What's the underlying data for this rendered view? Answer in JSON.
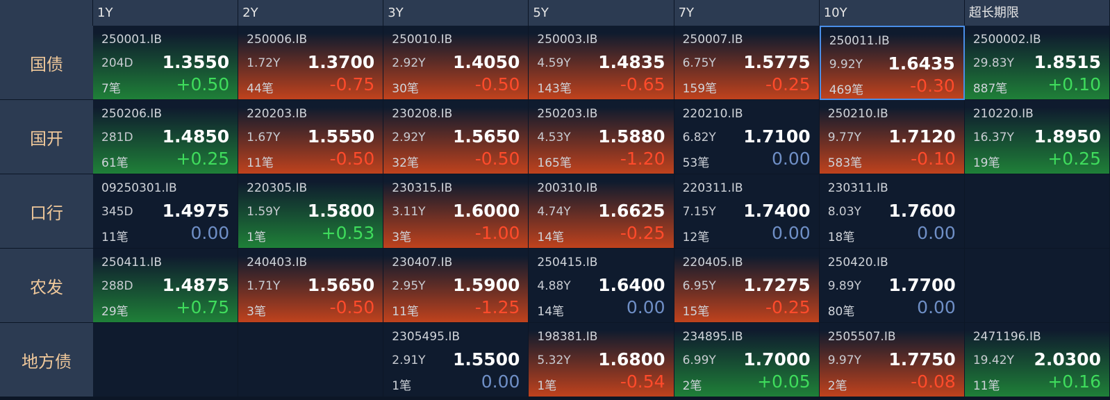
{
  "columns": [
    "1Y",
    "2Y",
    "3Y",
    "5Y",
    "7Y",
    "10Y",
    "超长期限"
  ],
  "rows": [
    {
      "label": "国债",
      "cells": [
        {
          "code": "250001.IB",
          "term": "204D",
          "price": "1.3550",
          "count": "7笔",
          "change": "+0.50"
        },
        {
          "code": "250006.IB",
          "term": "1.72Y",
          "price": "1.3700",
          "count": "44笔",
          "change": "-0.75"
        },
        {
          "code": "250010.IB",
          "term": "2.92Y",
          "price": "1.4050",
          "count": "30笔",
          "change": "-0.50"
        },
        {
          "code": "250003.IB",
          "term": "4.59Y",
          "price": "1.4835",
          "count": "143笔",
          "change": "-0.65"
        },
        {
          "code": "250007.IB",
          "term": "6.75Y",
          "price": "1.5775",
          "count": "159笔",
          "change": "-0.25"
        },
        {
          "code": "250011.IB",
          "term": "9.92Y",
          "price": "1.6435",
          "count": "469笔",
          "change": "-0.30"
        },
        {
          "code": "2500002.IB",
          "term": "29.83Y",
          "price": "1.8515",
          "count": "887笔",
          "change": "+0.10"
        }
      ]
    },
    {
      "label": "国开",
      "cells": [
        {
          "code": "250206.IB",
          "term": "281D",
          "price": "1.4850",
          "count": "61笔",
          "change": "+0.25"
        },
        {
          "code": "220203.IB",
          "term": "1.67Y",
          "price": "1.5550",
          "count": "11笔",
          "change": "-0.50"
        },
        {
          "code": "230208.IB",
          "term": "2.92Y",
          "price": "1.5650",
          "count": "32笔",
          "change": "-0.50"
        },
        {
          "code": "250203.IB",
          "term": "4.53Y",
          "price": "1.5880",
          "count": "165笔",
          "change": "-1.20"
        },
        {
          "code": "220210.IB",
          "term": "6.82Y",
          "price": "1.7100",
          "count": "53笔",
          "change": "0.00"
        },
        {
          "code": "250210.IB",
          "term": "9.77Y",
          "price": "1.7120",
          "count": "583笔",
          "change": "-0.10"
        },
        {
          "code": "210220.IB",
          "term": "16.37Y",
          "price": "1.8950",
          "count": "19笔",
          "change": "+0.25"
        }
      ]
    },
    {
      "label": "口行",
      "cells": [
        {
          "code": "09250301.IB",
          "term": "345D",
          "price": "1.4975",
          "count": "11笔",
          "change": "0.00"
        },
        {
          "code": "220305.IB",
          "term": "1.59Y",
          "price": "1.5800",
          "count": "1笔",
          "change": "+0.53"
        },
        {
          "code": "230315.IB",
          "term": "3.11Y",
          "price": "1.6000",
          "count": "3笔",
          "change": "-1.00"
        },
        {
          "code": "200310.IB",
          "term": "4.74Y",
          "price": "1.6625",
          "count": "14笔",
          "change": "-0.25"
        },
        {
          "code": "220311.IB",
          "term": "7.15Y",
          "price": "1.7400",
          "count": "12笔",
          "change": "0.00"
        },
        {
          "code": "230311.IB",
          "term": "8.03Y",
          "price": "1.7600",
          "count": "18笔",
          "change": "0.00"
        },
        null
      ]
    },
    {
      "label": "农发",
      "cells": [
        {
          "code": "250411.IB",
          "term": "288D",
          "price": "1.4875",
          "count": "29笔",
          "change": "+0.75"
        },
        {
          "code": "240403.IB",
          "term": "1.71Y",
          "price": "1.5650",
          "count": "3笔",
          "change": "-0.50"
        },
        {
          "code": "230407.IB",
          "term": "2.95Y",
          "price": "1.5900",
          "count": "11笔",
          "change": "-1.25"
        },
        {
          "code": "250415.IB",
          "term": "4.88Y",
          "price": "1.6400",
          "count": "14笔",
          "change": "0.00"
        },
        {
          "code": "220405.IB",
          "term": "6.95Y",
          "price": "1.7275",
          "count": "15笔",
          "change": "-0.25"
        },
        {
          "code": "250420.IB",
          "term": "9.89Y",
          "price": "1.7700",
          "count": "80笔",
          "change": "0.00"
        },
        null
      ]
    },
    {
      "label": "地方债",
      "cells": [
        null,
        null,
        {
          "code": "2305495.IB",
          "term": "2.91Y",
          "price": "1.5500",
          "count": "1笔",
          "change": "0.00"
        },
        {
          "code": "198381.IB",
          "term": "5.32Y",
          "price": "1.6800",
          "count": "1笔",
          "change": "-0.54"
        },
        {
          "code": "234895.IB",
          "term": "6.99Y",
          "price": "1.7000",
          "count": "2笔",
          "change": "+0.05"
        },
        {
          "code": "2505507.IB",
          "term": "9.97Y",
          "price": "1.7750",
          "count": "2笔",
          "change": "-0.08"
        },
        {
          "code": "2471196.IB",
          "term": "19.42Y",
          "price": "2.0300",
          "count": "11笔",
          "change": "+0.16"
        }
      ]
    }
  ]
}
